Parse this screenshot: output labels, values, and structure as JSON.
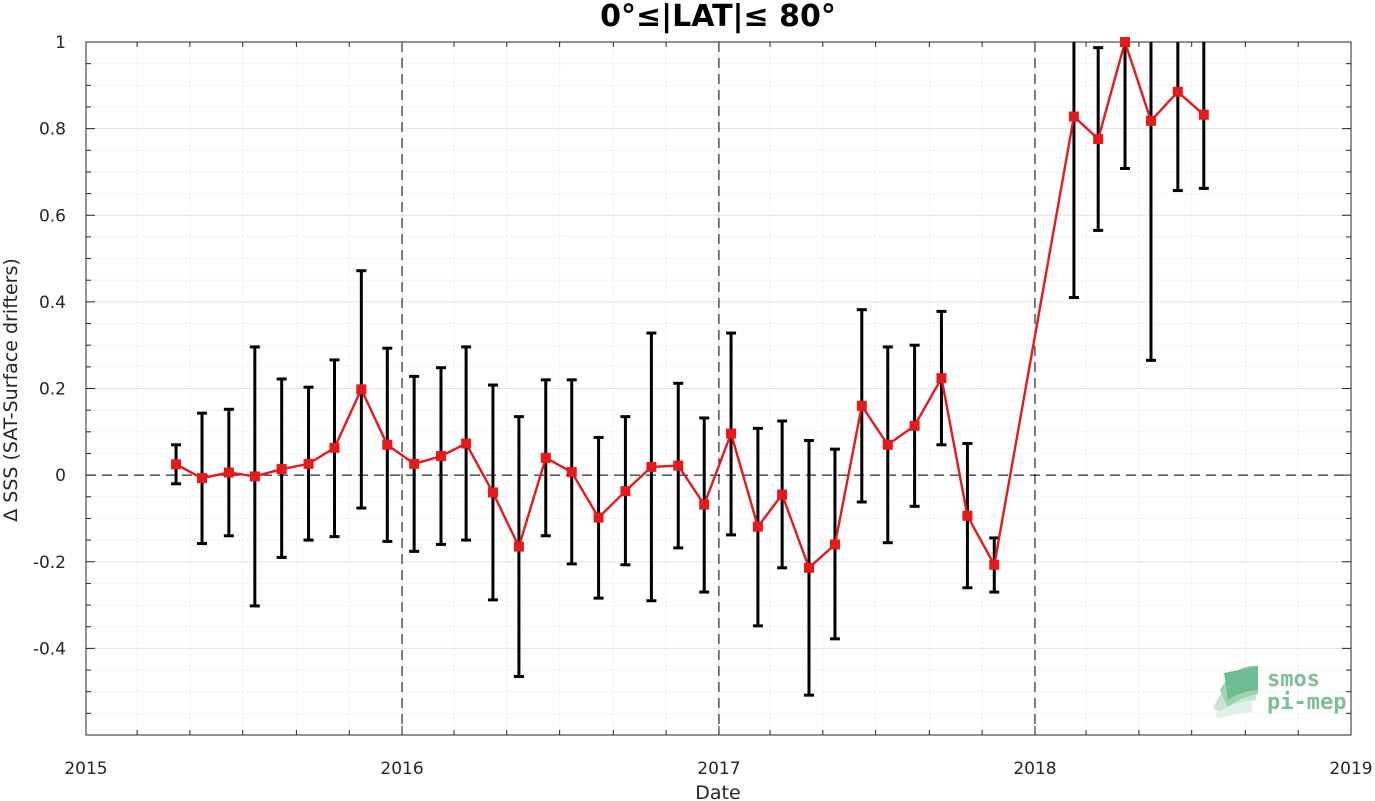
{
  "chart_data": {
    "type": "line",
    "title": "0°≤|LAT|≤ 80°",
    "xlabel": "Date",
    "ylabel": "Δ SSS (SAT-Surface drifters)",
    "xlim": [
      "2015-01-01",
      "2019-01-01"
    ],
    "ylim": [
      -0.6,
      1.0
    ],
    "x_ticks": [
      "2015",
      "2016",
      "2017",
      "2018",
      "2019"
    ],
    "y_ticks": [
      "-0.4",
      "-0.2",
      "0",
      "0.2",
      "0.4",
      "0.6",
      "0.8",
      "1"
    ],
    "grid": true,
    "year_boundaries_dashed": true,
    "zero_line_dashed": true,
    "line_color": "#e8191b",
    "errorbar_color": "#000000",
    "series": [
      {
        "marker": "square",
        "points": [
          {
            "date": "2015-04-15",
            "y": 0.025,
            "err_lo": -0.02,
            "err_hi": 0.07
          },
          {
            "date": "2015-05-15",
            "y": -0.007,
            "err_lo": -0.158,
            "err_hi": 0.143
          },
          {
            "date": "2015-06-15",
            "y": 0.006,
            "err_lo": -0.14,
            "err_hi": 0.152
          },
          {
            "date": "2015-07-15",
            "y": -0.003,
            "err_lo": -0.302,
            "err_hi": 0.296
          },
          {
            "date": "2015-08-15",
            "y": 0.014,
            "err_lo": -0.19,
            "err_hi": 0.222
          },
          {
            "date": "2015-09-15",
            "y": 0.026,
            "err_lo": -0.15,
            "err_hi": 0.203
          },
          {
            "date": "2015-10-15",
            "y": 0.063,
            "err_lo": -0.142,
            "err_hi": 0.266
          },
          {
            "date": "2015-11-15",
            "y": 0.198,
            "err_lo": -0.076,
            "err_hi": 0.472
          },
          {
            "date": "2015-12-15",
            "y": 0.07,
            "err_lo": -0.153,
            "err_hi": 0.293
          },
          {
            "date": "2016-01-15",
            "y": 0.026,
            "err_lo": -0.176,
            "err_hi": 0.228
          },
          {
            "date": "2016-02-15",
            "y": 0.044,
            "err_lo": -0.16,
            "err_hi": 0.248
          },
          {
            "date": "2016-03-15",
            "y": 0.073,
            "err_lo": -0.15,
            "err_hi": 0.296
          },
          {
            "date": "2016-04-15",
            "y": -0.04,
            "err_lo": -0.288,
            "err_hi": 0.208
          },
          {
            "date": "2016-05-15",
            "y": -0.165,
            "err_lo": -0.465,
            "err_hi": 0.135
          },
          {
            "date": "2016-06-15",
            "y": 0.04,
            "err_lo": -0.14,
            "err_hi": 0.22
          },
          {
            "date": "2016-07-15",
            "y": 0.007,
            "err_lo": -0.205,
            "err_hi": 0.22
          },
          {
            "date": "2016-08-15",
            "y": -0.098,
            "err_lo": -0.284,
            "err_hi": 0.087
          },
          {
            "date": "2016-09-15",
            "y": -0.037,
            "err_lo": -0.207,
            "err_hi": 0.135
          },
          {
            "date": "2016-10-15",
            "y": 0.019,
            "err_lo": -0.29,
            "err_hi": 0.328
          },
          {
            "date": "2016-11-15",
            "y": 0.022,
            "err_lo": -0.168,
            "err_hi": 0.212
          },
          {
            "date": "2016-12-15",
            "y": -0.068,
            "err_lo": -0.27,
            "err_hi": 0.132
          },
          {
            "date": "2017-01-15",
            "y": 0.096,
            "err_lo": -0.138,
            "err_hi": 0.328
          },
          {
            "date": "2017-02-15",
            "y": -0.119,
            "err_lo": -0.348,
            "err_hi": 0.108
          },
          {
            "date": "2017-03-15",
            "y": -0.045,
            "err_lo": -0.214,
            "err_hi": 0.125
          },
          {
            "date": "2017-04-15",
            "y": -0.214,
            "err_lo": -0.508,
            "err_hi": 0.08
          },
          {
            "date": "2017-05-15",
            "y": -0.16,
            "err_lo": -0.378,
            "err_hi": 0.06
          },
          {
            "date": "2017-06-15",
            "y": 0.16,
            "err_lo": -0.062,
            "err_hi": 0.382
          },
          {
            "date": "2017-07-15",
            "y": 0.07,
            "err_lo": -0.156,
            "err_hi": 0.296
          },
          {
            "date": "2017-08-15",
            "y": 0.114,
            "err_lo": -0.072,
            "err_hi": 0.3
          },
          {
            "date": "2017-09-15",
            "y": 0.224,
            "err_lo": 0.07,
            "err_hi": 0.378
          },
          {
            "date": "2017-10-15",
            "y": -0.094,
            "err_lo": -0.26,
            "err_hi": 0.073
          },
          {
            "date": "2017-11-15",
            "y": -0.207,
            "err_lo": -0.27,
            "err_hi": -0.145
          },
          {
            "date": "2018-02-15",
            "y": 0.828,
            "err_lo": 0.41,
            "err_hi": 1.0
          },
          {
            "date": "2018-03-15",
            "y": 0.776,
            "err_lo": 0.565,
            "err_hi": 0.987
          },
          {
            "date": "2018-04-15",
            "y": 1.0,
            "err_lo": 0.708,
            "err_hi": 1.0
          },
          {
            "date": "2018-05-15",
            "y": 0.818,
            "err_lo": 0.265,
            "err_hi": 1.0
          },
          {
            "date": "2018-06-15",
            "y": 0.885,
            "err_lo": 0.657,
            "err_hi": 1.0
          },
          {
            "date": "2018-07-15",
            "y": 0.832,
            "err_lo": 0.662,
            "err_hi": 1.0
          }
        ]
      }
    ]
  },
  "watermark": {
    "line1": "smos",
    "line2": "pi-mep",
    "color": "#7dbf9a"
  }
}
